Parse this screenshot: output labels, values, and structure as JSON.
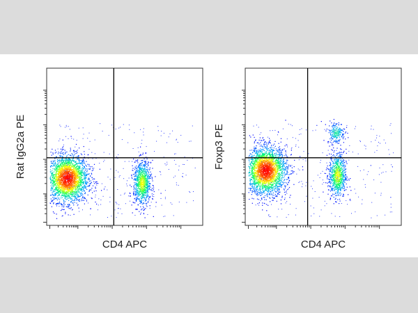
{
  "chart_data": [
    {
      "type": "scatter",
      "subtype": "flow-cytometry-density-plot",
      "xlabel": "CD4 APC",
      "ylabel": "Rat IgG2a PE",
      "x_scale": "log",
      "y_scale": "log",
      "quadrant_gate": {
        "x": 0.43,
        "y": 0.43
      },
      "populations": [
        {
          "name": "",
          "x_center": 0.13,
          "y_center": 0.3,
          "relative_size": 1.0,
          "peak_density": "high"
        },
        {
          "name": "",
          "x_center": 0.61,
          "y_center": 0.27,
          "relative_size": 0.35,
          "peak_density": "medium"
        }
      ],
      "colormap": [
        "#0000ff",
        "#00aaff",
        "#00ff66",
        "#ffff00",
        "#ff6600",
        "#ff0000"
      ]
    },
    {
      "type": "scatter",
      "subtype": "flow-cytometry-density-plot",
      "xlabel": "CD4 APC",
      "ylabel": "Foxp3 PE",
      "x_scale": "log",
      "y_scale": "log",
      "quadrant_gate": {
        "x": 0.4,
        "y": 0.43
      },
      "populations": [
        {
          "name": "",
          "x_center": 0.13,
          "y_center": 0.35,
          "relative_size": 1.0,
          "peak_density": "high"
        },
        {
          "name": "",
          "x_center": 0.59,
          "y_center": 0.32,
          "relative_size": 0.3,
          "peak_density": "medium"
        },
        {
          "name": "",
          "x_center": 0.58,
          "y_center": 0.59,
          "relative_size": 0.08,
          "peak_density": "low"
        }
      ],
      "colormap": [
        "#0000ff",
        "#00aaff",
        "#00ff66",
        "#ffff00",
        "#ff6600",
        "#ff0000"
      ]
    }
  ]
}
